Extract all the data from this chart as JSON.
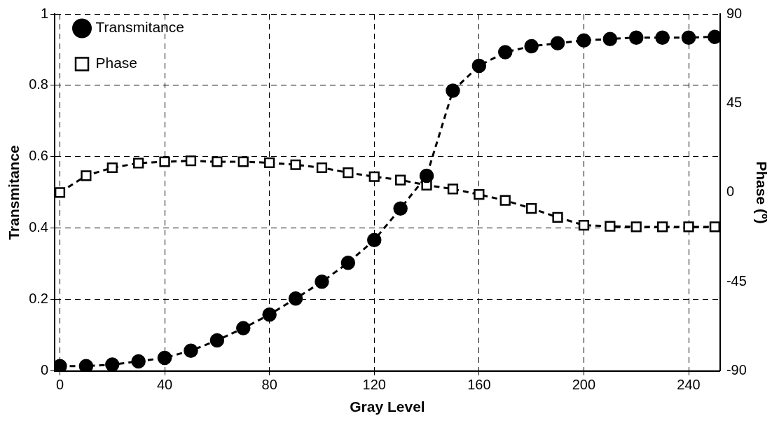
{
  "chart_data": {
    "type": "line",
    "xlabel": "Gray Level",
    "ylabel": "Transmitance",
    "y2label": "Phase (º)",
    "x": [
      0,
      10,
      20,
      30,
      40,
      50,
      60,
      70,
      80,
      90,
      100,
      110,
      120,
      130,
      140,
      150,
      160,
      170,
      180,
      190,
      200,
      210,
      220,
      230,
      240,
      250
    ],
    "series": [
      {
        "name": "Transmitance",
        "color": "#000000",
        "marker": "circle",
        "values": [
          0.014,
          0.014,
          0.018,
          0.027,
          0.037,
          0.057,
          0.086,
          0.12,
          0.158,
          0.203,
          0.25,
          0.303,
          0.367,
          0.455,
          0.547,
          0.785,
          0.855,
          0.893,
          0.91,
          0.918,
          0.926,
          0.93,
          0.934,
          0.934,
          0.934,
          0.936
        ]
      },
      {
        "name": "Phase",
        "color": "#000000",
        "marker": "square",
        "axis": "y2",
        "values": [
          0,
          8.5,
          12.5,
          14.8,
          15.5,
          16,
          15.5,
          15.5,
          15,
          14,
          12.5,
          10,
          8,
          6.3,
          3.7,
          1.8,
          -1,
          -4,
          -8,
          -12.5,
          -16.5,
          -17,
          -17.3,
          -17.3,
          -17.3,
          -17.3
        ]
      }
    ],
    "xlim": [
      -2,
      252
    ],
    "xticks": [
      0,
      40,
      80,
      120,
      160,
      200,
      240
    ],
    "ylim": [
      0,
      1
    ],
    "yticks": [
      0,
      0.2,
      0.4,
      0.6,
      0.8,
      1
    ],
    "y2lim": [
      -90,
      90
    ],
    "y2ticks": [
      -90,
      -45,
      0,
      45,
      90
    ],
    "grid": true,
    "legend": "top left",
    "line_style": "dashed"
  }
}
